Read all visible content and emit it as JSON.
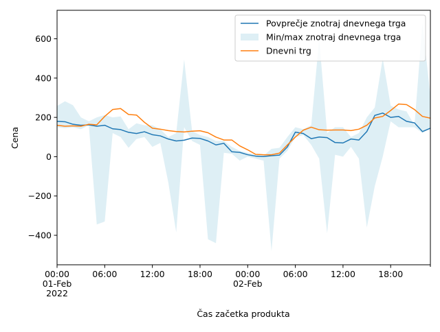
{
  "chart_data": {
    "type": "line",
    "xlabel": "Čas začetka produkta",
    "ylabel": "Cena",
    "x_start": "2022-02-01 00:00",
    "x_end": "2022-02-02 23:00",
    "x_step_hours": 1,
    "xlim": [
      "2022-02-01 00:00",
      "2022-02-02 23:00"
    ],
    "ylim": [
      -550,
      745
    ],
    "grid": false,
    "legend_position": "upper right",
    "x_ticks": [
      {
        "hour": 0,
        "lines": [
          "00:00",
          "01-Feb",
          "2022"
        ]
      },
      {
        "hour": 6,
        "lines": [
          "06:00"
        ]
      },
      {
        "hour": 12,
        "lines": [
          "12:00"
        ]
      },
      {
        "hour": 18,
        "lines": [
          "18:00"
        ]
      },
      {
        "hour": 24,
        "lines": [
          "00:00",
          "02-Feb"
        ]
      },
      {
        "hour": 30,
        "lines": [
          "06:00"
        ]
      },
      {
        "hour": 36,
        "lines": [
          "12:00"
        ]
      },
      {
        "hour": 42,
        "lines": [
          "18:00"
        ]
      }
    ],
    "y_ticks": [
      -400,
      -200,
      0,
      200,
      400,
      600
    ],
    "legend": [
      {
        "label": "Povprečje znotraj dnevnega trga",
        "kind": "line",
        "series": "mean"
      },
      {
        "label": "Min/max znotraj dnevnega trga",
        "kind": "patch",
        "series": "band"
      },
      {
        "label": "Dnevni trg",
        "kind": "line",
        "series": "day_ahead"
      }
    ],
    "series": [
      {
        "id": "mean",
        "name": "Povprečje znotraj dnevnega trga",
        "color": "#1f77b4",
        "values": [
          180,
          178,
          165,
          160,
          162,
          155,
          160,
          142,
          138,
          124,
          118,
          127,
          112,
          106,
          90,
          80,
          84,
          95,
          93,
          80,
          60,
          68,
          25,
          22,
          10,
          3,
          1,
          5,
          8,
          50,
          125,
          118,
          92,
          100,
          97,
          72,
          70,
          90,
          85,
          128,
          210,
          222,
          200,
          205,
          180,
          172,
          128,
          145
        ]
      },
      {
        "id": "band",
        "name": "Min/max znotraj dnevnega trga",
        "color": "#add8e6",
        "opacity": 0.4,
        "upper": [
          258,
          282,
          262,
          200,
          180,
          200,
          212,
          200,
          205,
          140,
          170,
          160,
          160,
          140,
          100,
          120,
          495,
          130,
          110,
          100,
          80,
          80,
          50,
          30,
          20,
          10,
          5,
          40,
          45,
          100,
          150,
          140,
          160,
          600,
          120,
          150,
          150,
          100,
          120,
          200,
          250,
          500,
          260,
          240,
          230,
          160,
          680,
          310
        ],
        "lower": [
          150,
          145,
          150,
          140,
          160,
          -345,
          -330,
          120,
          100,
          45,
          90,
          100,
          50,
          70,
          -130,
          -385,
          150,
          80,
          60,
          -420,
          -440,
          20,
          15,
          -20,
          0,
          -10,
          -20,
          -480,
          -10,
          30,
          100,
          110,
          60,
          -10,
          -390,
          10,
          0,
          50,
          -10,
          -360,
          -150,
          0,
          180,
          150,
          150,
          150,
          120,
          145
        ]
      },
      {
        "id": "day_ahead",
        "name": "Dnevni trg",
        "color": "#ff7f0e",
        "values": [
          160,
          155,
          157,
          155,
          165,
          162,
          205,
          240,
          245,
          215,
          212,
          175,
          145,
          140,
          133,
          128,
          126,
          130,
          132,
          122,
          100,
          85,
          85,
          55,
          35,
          12,
          10,
          10,
          18,
          60,
          100,
          135,
          150,
          137,
          135,
          136,
          136,
          133,
          140,
          160,
          197,
          205,
          235,
          268,
          265,
          240,
          205,
          196
        ]
      }
    ]
  }
}
